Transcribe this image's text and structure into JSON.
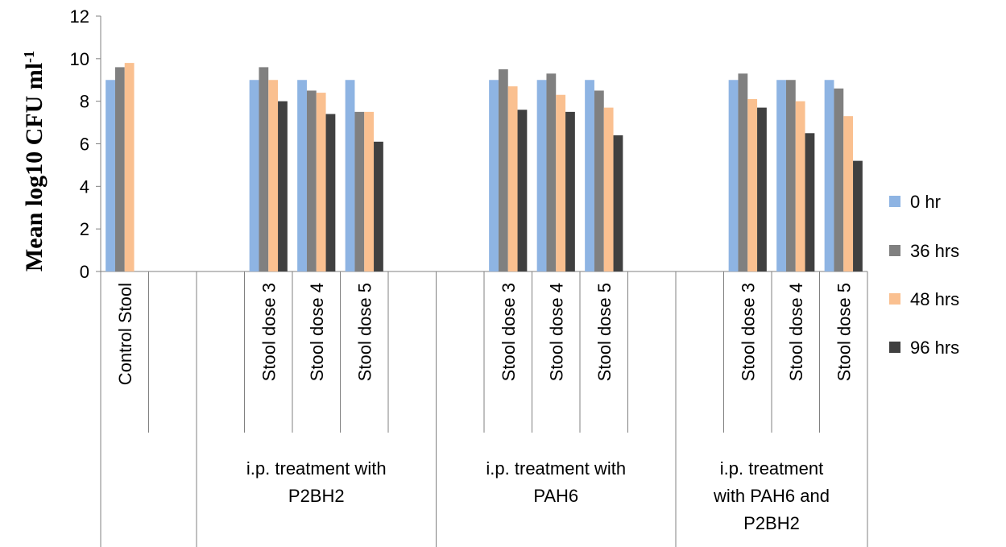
{
  "chart_data": {
    "type": "bar",
    "ylabel": "Mean log10 CFU ml",
    "ylabel_superscript": "-1",
    "ylim": [
      0,
      12
    ],
    "yticks": [
      0,
      2,
      4,
      6,
      8,
      10,
      12
    ],
    "grid": false,
    "legend_position": "right",
    "legend": [
      "0 hr",
      "36 hrs",
      "48 hrs",
      "96 hrs"
    ],
    "colors": [
      "#8EB4E3",
      "#808080",
      "#FAC090",
      "#404040"
    ],
    "categories": [
      {
        "label": "Control Stool",
        "group": 0
      },
      {
        "label": "",
        "group": 0
      },
      {
        "label": "",
        "group": 1
      },
      {
        "label": "Stool dose 3",
        "group": 1
      },
      {
        "label": "Stool dose 4",
        "group": 1
      },
      {
        "label": "Stool dose 5",
        "group": 1
      },
      {
        "label": "",
        "group": 1
      },
      {
        "label": "",
        "group": 2
      },
      {
        "label": "Stool dose 3",
        "group": 2
      },
      {
        "label": "Stool dose 4",
        "group": 2
      },
      {
        "label": "Stool dose 5",
        "group": 2
      },
      {
        "label": "",
        "group": 2
      },
      {
        "label": "",
        "group": 3
      },
      {
        "label": "Stool dose 3",
        "group": 3
      },
      {
        "label": "Stool dose 4",
        "group": 3
      },
      {
        "label": "Stool dose 5",
        "group": 3
      }
    ],
    "groups": [
      {
        "label": ""
      },
      {
        "label": "i.p. treatment with P2BH2"
      },
      {
        "label": "i.p. treatment with PAH6"
      },
      {
        "label": "i.p. treatment with PAH6 and P2BH2"
      }
    ],
    "series": [
      {
        "name": "0 hr",
        "values": [
          9.0,
          null,
          null,
          9.0,
          9.0,
          9.0,
          null,
          null,
          9.0,
          9.0,
          9.0,
          null,
          null,
          9.0,
          9.0,
          9.0
        ]
      },
      {
        "name": "36 hrs",
        "values": [
          9.6,
          null,
          null,
          9.6,
          8.5,
          7.5,
          null,
          null,
          9.5,
          9.3,
          8.5,
          null,
          null,
          9.3,
          9.0,
          8.6
        ]
      },
      {
        "name": "48 hrs",
        "values": [
          9.8,
          null,
          null,
          9.0,
          8.4,
          7.5,
          null,
          null,
          8.7,
          8.3,
          7.7,
          null,
          null,
          8.1,
          8.0,
          7.3
        ]
      },
      {
        "name": "96 hrs",
        "values": [
          null,
          null,
          null,
          8.0,
          7.4,
          6.1,
          null,
          null,
          7.6,
          7.5,
          6.4,
          null,
          null,
          7.7,
          6.5,
          5.2
        ]
      }
    ]
  }
}
